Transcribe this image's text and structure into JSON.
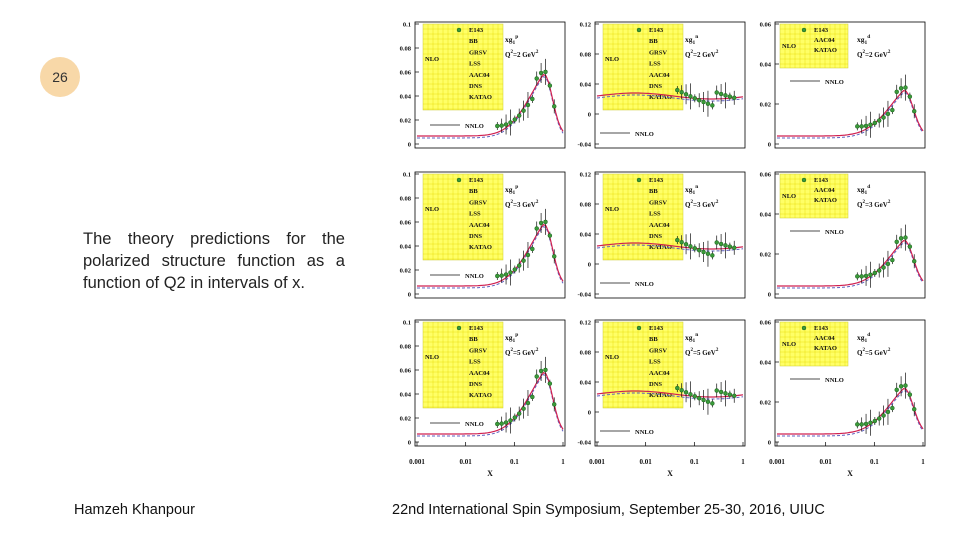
{
  "slide": {
    "number": "26"
  },
  "description": {
    "text": "The theory predictions for the polarized structure function as a function of Q2 in intervals of x."
  },
  "footer": {
    "author": "Hamzeh Khanpour",
    "event": "22nd International Spin Symposium, September 25-30, 2016, UIUC"
  },
  "colors": {
    "legend_bg": "#ffff66",
    "data_point": "#3a9a3a",
    "curve_main": "#d02050",
    "curve_alt": "#6060c0"
  },
  "figure": {
    "x_axis_label": "X",
    "x_ticks": [
      "0.001",
      "0.01",
      "0.1",
      "1"
    ],
    "legend_nlo": "NLO",
    "legend_nnlo": "NNLO",
    "legend_pn": [
      "E143",
      "BB",
      "GRSV",
      "LSS",
      "AAC04",
      "DNS",
      "KATAO"
    ],
    "legend_d": [
      "E143",
      "AAC04",
      "KATAO"
    ],
    "y_ticks_p": [
      "0.1",
      "0.08",
      "0.06",
      "0.04",
      "0.02",
      "0"
    ],
    "y_ticks_n": [
      "0.12",
      "0.08",
      "0.04",
      "0",
      "-0.04"
    ],
    "y_ticks_d": [
      "0.06",
      "0.04",
      "0.02",
      "0"
    ],
    "panels": [
      {
        "f": "xg",
        "sub": "1",
        "sup": "p",
        "q2": "Q",
        "q2v": "=2 GeV"
      },
      {
        "f": "xg",
        "sub": "1",
        "sup": "n",
        "q2": "Q",
        "q2v": "=2 GeV"
      },
      {
        "f": "xg",
        "sub": "1",
        "sup": "d",
        "q2": "Q",
        "q2v": "=2 GeV"
      },
      {
        "f": "xg",
        "sub": "1",
        "sup": "p",
        "q2": "Q",
        "q2v": "=3 GeV"
      },
      {
        "f": "xg",
        "sub": "1",
        "sup": "n",
        "q2": "Q",
        "q2v": "=3 GeV"
      },
      {
        "f": "xg",
        "sub": "1",
        "sup": "d",
        "q2": "Q",
        "q2v": "=3 GeV"
      },
      {
        "f": "xg",
        "sub": "1",
        "sup": "p",
        "q2": "Q",
        "q2v": "=5 GeV"
      },
      {
        "f": "xg",
        "sub": "1",
        "sup": "n",
        "q2": "Q",
        "q2v": "=5 GeV"
      },
      {
        "f": "xg",
        "sub": "1",
        "sup": "d",
        "q2": "Q",
        "q2v": "=5 GeV"
      }
    ],
    "panel_sq": "2"
  }
}
